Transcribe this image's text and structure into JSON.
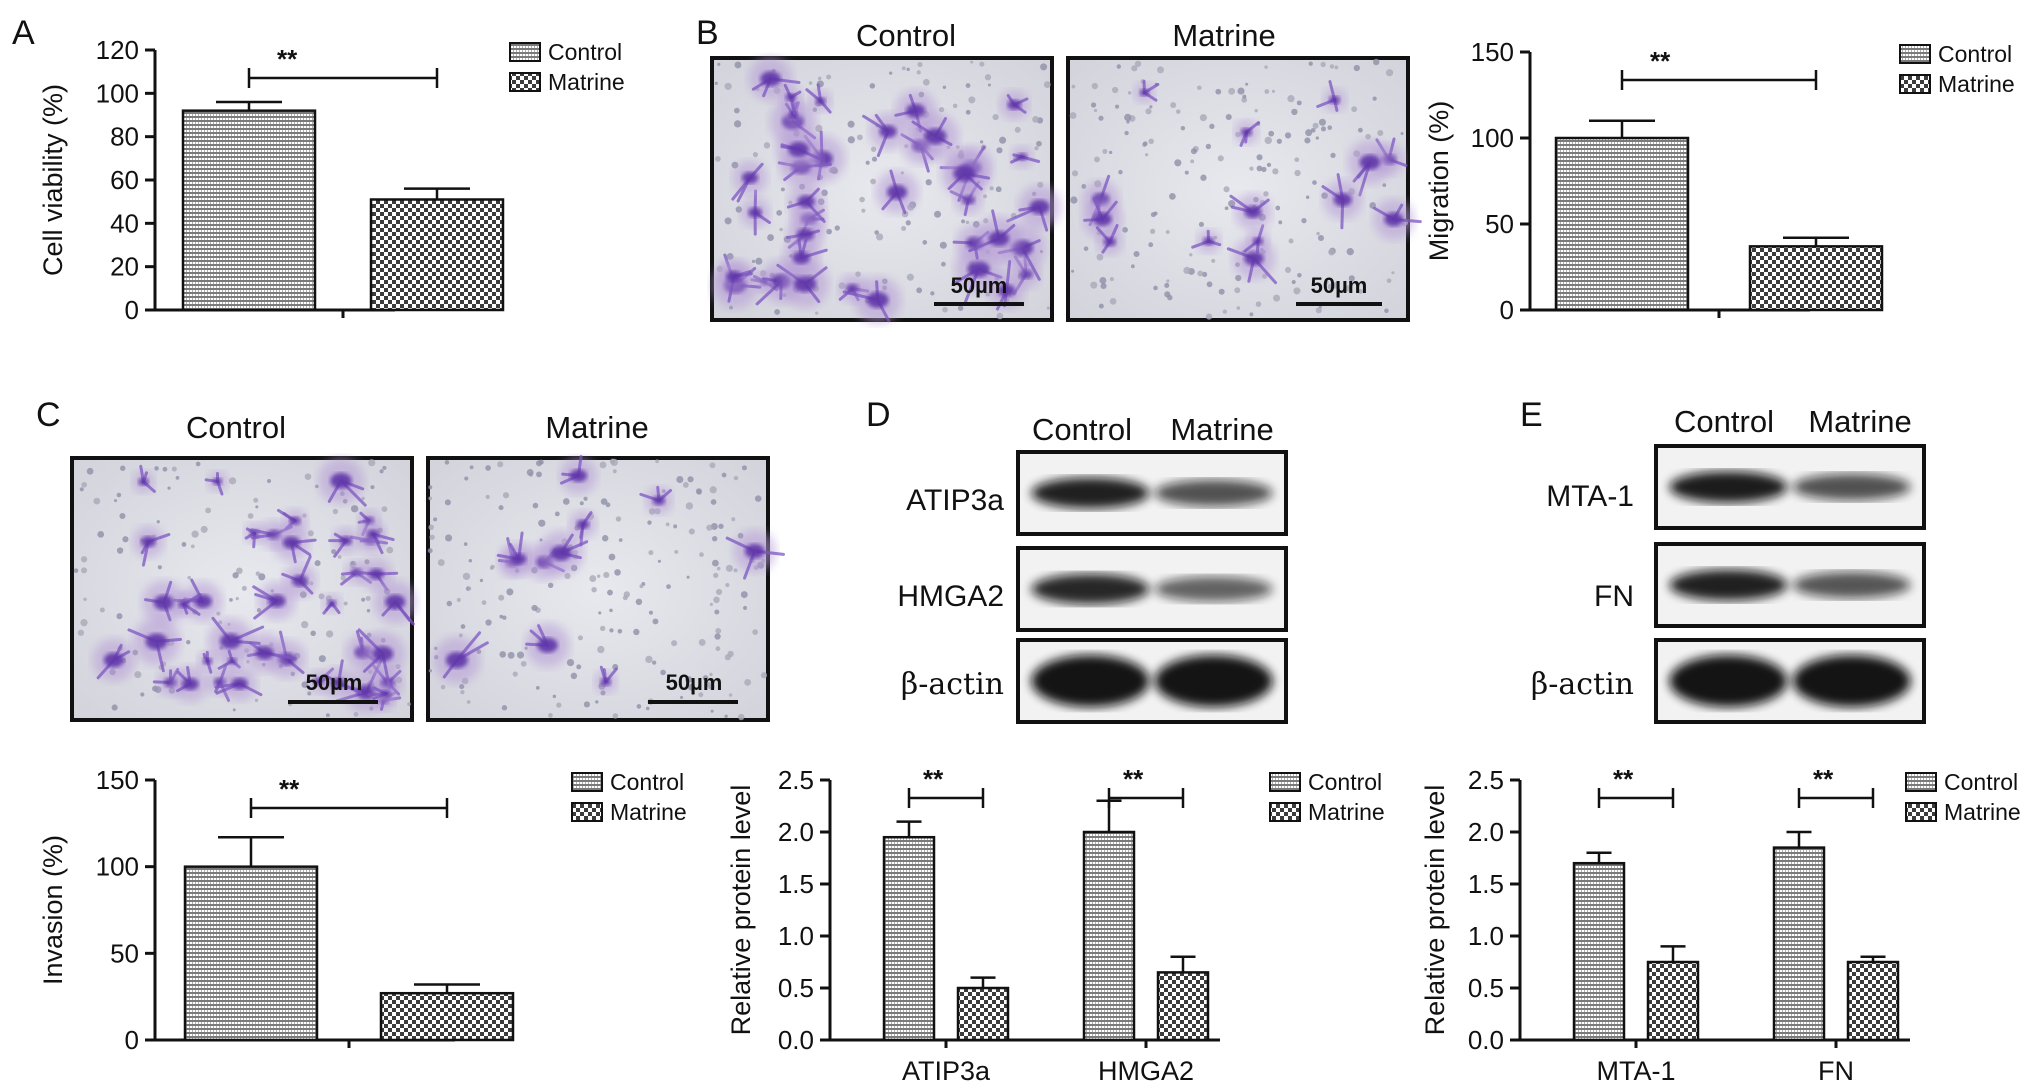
{
  "panels": {
    "A": {
      "label": "A"
    },
    "B": {
      "label": "B",
      "photo_left": "Control",
      "photo_right": "Matrine",
      "scale_bar": "50µm"
    },
    "C": {
      "label": "C",
      "photo_left": "Control",
      "photo_right": "Matrine",
      "scale_bar": "50µm"
    },
    "D": {
      "label": "D",
      "lane_left": "Control",
      "lane_right": "Matrine",
      "rows": [
        "ATIP3a",
        "HMGA2",
        "β-actin"
      ]
    },
    "E": {
      "label": "E",
      "lane_left": "Control",
      "lane_right": "Matrine",
      "rows": [
        "MTA-1",
        "FN",
        "β-actin"
      ]
    }
  },
  "colors": {
    "control_fill": "#8a8a8a",
    "matrine_fill": "#555555",
    "photo_bg": "#dcdde4",
    "cell": "#6b3fb0"
  },
  "chart_data": [
    {
      "panel": "A",
      "type": "bar",
      "ylabel": "Cell viability (%)",
      "ylim": [
        0,
        120
      ],
      "yticks": [
        0,
        20,
        40,
        60,
        80,
        100,
        120
      ],
      "categories": [
        ""
      ],
      "series": [
        {
          "name": "Control",
          "values": [
            92
          ],
          "errors": [
            4
          ]
        },
        {
          "name": "Matrine",
          "values": [
            51
          ],
          "errors": [
            5
          ]
        }
      ],
      "significance": [
        "**"
      ],
      "legend": "top-right"
    },
    {
      "panel": "B",
      "type": "bar",
      "ylabel": "Migration (%)",
      "ylim": [
        0,
        150
      ],
      "yticks": [
        0,
        50,
        100,
        150
      ],
      "categories": [
        ""
      ],
      "series": [
        {
          "name": "Control",
          "values": [
            100
          ],
          "errors": [
            10
          ]
        },
        {
          "name": "Matrine",
          "values": [
            37
          ],
          "errors": [
            5
          ]
        }
      ],
      "significance": [
        "**"
      ],
      "legend": "top-right"
    },
    {
      "panel": "C",
      "type": "bar",
      "ylabel": "Invasion (%)",
      "ylim": [
        0,
        150
      ],
      "yticks": [
        0,
        50,
        100,
        150
      ],
      "categories": [
        ""
      ],
      "series": [
        {
          "name": "Control",
          "values": [
            100
          ],
          "errors": [
            17
          ]
        },
        {
          "name": "Matrine",
          "values": [
            27
          ],
          "errors": [
            5
          ]
        }
      ],
      "significance": [
        "**"
      ],
      "legend": "top-right"
    },
    {
      "panel": "D",
      "type": "bar",
      "ylabel": "Relative protein level",
      "ylim": [
        0,
        2.5
      ],
      "yticks": [
        "0.0",
        "0.5",
        "1.0",
        "1.5",
        "2.0",
        "2.5"
      ],
      "categories": [
        "ATIP3a",
        "HMGA2"
      ],
      "series": [
        {
          "name": "Control",
          "values": [
            1.95,
            2.0
          ],
          "errors": [
            0.15,
            0.3
          ]
        },
        {
          "name": "Matrine",
          "values": [
            0.5,
            0.65
          ],
          "errors": [
            0.1,
            0.15
          ]
        }
      ],
      "significance": [
        "**",
        "**"
      ],
      "legend": "top-right"
    },
    {
      "panel": "E",
      "type": "bar",
      "ylabel": "Relative protein level",
      "ylim": [
        0,
        2.5
      ],
      "yticks": [
        "0.0",
        "0.5",
        "1.0",
        "1.5",
        "2.0",
        "2.5"
      ],
      "categories": [
        "MTA-1",
        "FN"
      ],
      "series": [
        {
          "name": "Control",
          "values": [
            1.7,
            1.85
          ],
          "errors": [
            0.1,
            0.15
          ]
        },
        {
          "name": "Matrine",
          "values": [
            0.75,
            0.75
          ],
          "errors": [
            0.15,
            0.05
          ]
        }
      ],
      "significance": [
        "**",
        "**"
      ],
      "legend": "top-right"
    }
  ],
  "blots": {
    "D": [
      [
        0.92,
        0.62
      ],
      [
        0.88,
        0.52
      ],
      [
        1.0,
        1.0
      ]
    ],
    "E": [
      [
        0.95,
        0.62
      ],
      [
        0.92,
        0.6
      ],
      [
        1.0,
        1.0
      ]
    ]
  }
}
